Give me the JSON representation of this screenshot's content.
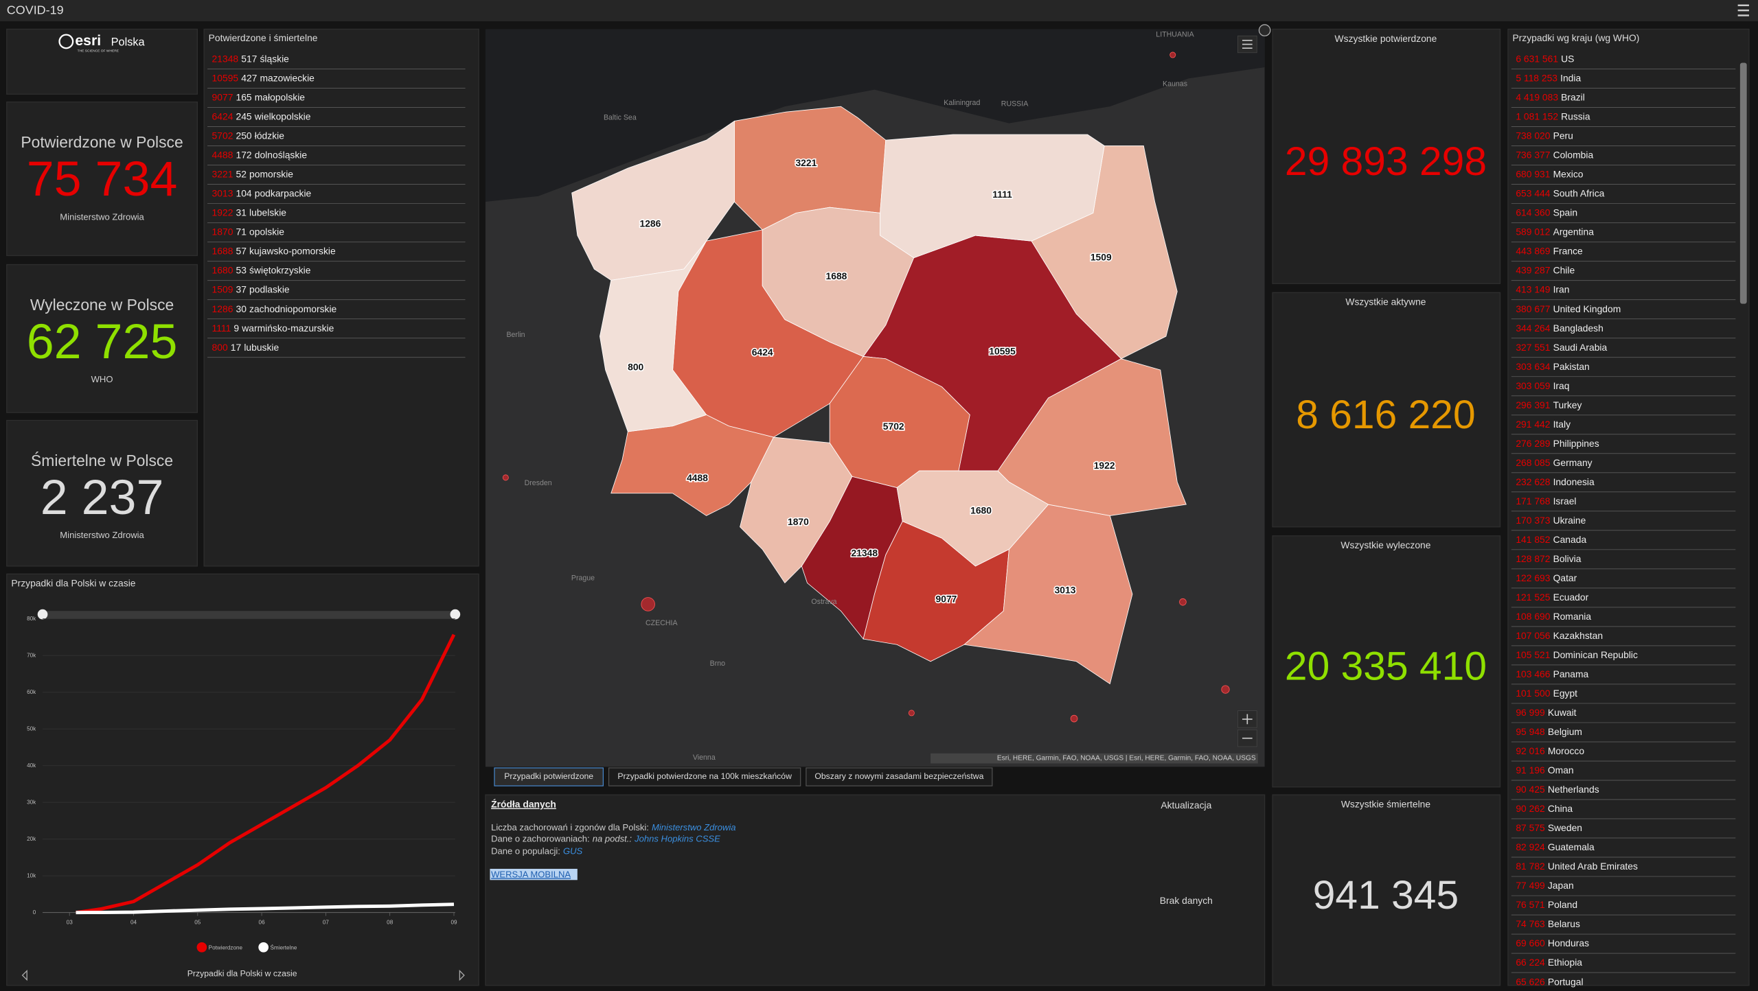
{
  "header": {
    "title": "COVID-19"
  },
  "logo": {
    "brand": "esri",
    "sub": "Polska",
    "tagline": "THE SCIENCE OF WHERE"
  },
  "poland_kpis": [
    {
      "title": "Potwierdzone w Polsce",
      "value": {
        "value": 75734,
        "label": "75 734"
      },
      "source": "Ministerstwo Zdrowia",
      "color": "#e60000"
    },
    {
      "title": "Wyleczone w Polsce",
      "value": {
        "value": 62725,
        "label": "62 725"
      },
      "source": "WHO",
      "color": "#8fe000"
    },
    {
      "title": "Śmiertelne w Polsce",
      "value": {
        "value": 2237,
        "label": "2 237"
      },
      "source": "Ministerstwo Zdrowia",
      "color": "#dddddd"
    }
  ],
  "regions": {
    "title": "Potwierdzone i śmiertelne",
    "cases_color": "#e60000",
    "rows": [
      {
        "cases": 21348,
        "deaths": 517,
        "name": "śląskie",
        "color": "#961822"
      },
      {
        "cases": 10595,
        "deaths": 427,
        "name": "mazowieckie",
        "color": "#a11d27"
      },
      {
        "cases": 9077,
        "deaths": 165,
        "name": "małopolskie",
        "color": "#c53a2f"
      },
      {
        "cases": 6424,
        "deaths": 245,
        "name": "wielkopolskie",
        "color": "#d9604a"
      },
      {
        "cases": 5702,
        "deaths": 250,
        "name": "łódzkie",
        "color": "#dc6a50"
      },
      {
        "cases": 4488,
        "deaths": 172,
        "name": "dolnośląskie",
        "color": "#e0775c"
      },
      {
        "cases": 3221,
        "deaths": 52,
        "name": "pomorskie",
        "color": "#e08468"
      },
      {
        "cases": 3013,
        "deaths": 104,
        "name": "podkarpackie",
        "color": "#e5907a"
      },
      {
        "cases": 1922,
        "deaths": 31,
        "name": "lubelskie",
        "color": "#e59279"
      },
      {
        "cases": 1870,
        "deaths": 71,
        "name": "opolskie",
        "color": "#ebbcab"
      },
      {
        "cases": 1688,
        "deaths": 57,
        "name": "kujawsko-pomorskie",
        "color": "#eac0b1"
      },
      {
        "cases": 1680,
        "deaths": 53,
        "name": "świętokrzyskie",
        "color": "#eec8b9"
      },
      {
        "cases": 1509,
        "deaths": 37,
        "name": "podlaskie",
        "color": "#ebbba8"
      },
      {
        "cases": 1286,
        "deaths": 30,
        "name": "zachodniopomorskie",
        "color": "#f0d8cf"
      },
      {
        "cases": 1111,
        "deaths": 9,
        "name": "warmińsko-mazurskie",
        "color": "#f0dcd4"
      },
      {
        "cases": 800,
        "deaths": 17,
        "name": "lubuskie",
        "color": "#f2e0d8"
      }
    ]
  },
  "map": {
    "places": [
      "LITHUANIA",
      "Kaunas",
      "Kaliningrad",
      "RUSSIA",
      "Baltic Sea",
      "Berlin",
      "Dresden",
      "Prague",
      "CZECHIA",
      "Brno",
      "Ostrava",
      "Vienna"
    ],
    "attribution": "Esri, HERE, Garmin, FAO, NOAA, USGS | Esri, HERE, Garmin, FAO, NOAA, USGS",
    "tabs": [
      "Przypadki potwierdzone",
      "Przypadki potwierdzone na 100k mieszkańców",
      "Obszary z nowymi zasadami bezpieczeństwa"
    ]
  },
  "sources": {
    "title": "Źródła danych",
    "line1": "Liczba zachorowań i zgonów dla Polski:",
    "link1": "Ministerstwo Zdrowia",
    "line2": "Dane o zachorowaniach:",
    "line2b": "na podst.:",
    "link2": "Johns Hopkins CSSE",
    "line3": "Dane o populacji:",
    "link3": "GUS",
    "mobile": "WERSJA MOBILNA",
    "update_title": "Aktualizacja",
    "update_value": "Brak danych"
  },
  "global_kpis": [
    {
      "title": "Wszystkie potwierdzone",
      "value": {
        "value": 29893298,
        "label": "29 893 298"
      },
      "color": "#e60000"
    },
    {
      "title": "Wszystkie aktywne",
      "value": {
        "value": 8616220,
        "label": "8 616 220"
      },
      "color": "#e69800"
    },
    {
      "title": "Wszystkie wyleczone",
      "value": {
        "value": 20335410,
        "label": "20 335 410"
      },
      "color": "#8fe000"
    },
    {
      "title": "Wszystkie śmiertelne",
      "value": {
        "value": 941345,
        "label": "941 345"
      },
      "color": "#dddddd"
    }
  ],
  "countries": {
    "title": "Przypadki wg kraju (wg WHO)",
    "cases_color": "#e60000",
    "rows": [
      {
        "cases": {
          "value": 6631561,
          "label": "6 631 561"
        },
        "name": "US"
      },
      {
        "cases": {
          "value": 5118253,
          "label": "5 118 253"
        },
        "name": "India"
      },
      {
        "cases": {
          "value": 4419083,
          "label": "4 419 083"
        },
        "name": "Brazil"
      },
      {
        "cases": {
          "value": 1081152,
          "label": "1 081 152"
        },
        "name": "Russia"
      },
      {
        "cases": {
          "value": 738020,
          "label": "738 020"
        },
        "name": "Peru"
      },
      {
        "cases": {
          "value": 736377,
          "label": "736 377"
        },
        "name": "Colombia"
      },
      {
        "cases": {
          "value": 680931,
          "label": "680 931"
        },
        "name": "Mexico"
      },
      {
        "cases": {
          "value": 653444,
          "label": "653 444"
        },
        "name": "South Africa"
      },
      {
        "cases": {
          "value": 614360,
          "label": "614 360"
        },
        "name": "Spain"
      },
      {
        "cases": {
          "value": 589012,
          "label": "589 012"
        },
        "name": "Argentina"
      },
      {
        "cases": {
          "value": 443869,
          "label": "443 869"
        },
        "name": "France"
      },
      {
        "cases": {
          "value": 439287,
          "label": "439 287"
        },
        "name": "Chile"
      },
      {
        "cases": {
          "value": 413149,
          "label": "413 149"
        },
        "name": "Iran"
      },
      {
        "cases": {
          "value": 380677,
          "label": "380 677"
        },
        "name": "United Kingdom"
      },
      {
        "cases": {
          "value": 344264,
          "label": "344 264"
        },
        "name": "Bangladesh"
      },
      {
        "cases": {
          "value": 327551,
          "label": "327 551"
        },
        "name": "Saudi Arabia"
      },
      {
        "cases": {
          "value": 303634,
          "label": "303 634"
        },
        "name": "Pakistan"
      },
      {
        "cases": {
          "value": 303059,
          "label": "303 059"
        },
        "name": "Iraq"
      },
      {
        "cases": {
          "value": 296391,
          "label": "296 391"
        },
        "name": "Turkey"
      },
      {
        "cases": {
          "value": 291442,
          "label": "291 442"
        },
        "name": "Italy"
      },
      {
        "cases": {
          "value": 276289,
          "label": "276 289"
        },
        "name": "Philippines"
      },
      {
        "cases": {
          "value": 268085,
          "label": "268 085"
        },
        "name": "Germany"
      },
      {
        "cases": {
          "value": 232628,
          "label": "232 628"
        },
        "name": "Indonesia"
      },
      {
        "cases": {
          "value": 171768,
          "label": "171 768"
        },
        "name": "Israel"
      },
      {
        "cases": {
          "value": 170373,
          "label": "170 373"
        },
        "name": "Ukraine"
      },
      {
        "cases": {
          "value": 141852,
          "label": "141 852"
        },
        "name": "Canada"
      },
      {
        "cases": {
          "value": 128872,
          "label": "128 872"
        },
        "name": "Bolivia"
      },
      {
        "cases": {
          "value": 122693,
          "label": "122 693"
        },
        "name": "Qatar"
      },
      {
        "cases": {
          "value": 121525,
          "label": "121 525"
        },
        "name": "Ecuador"
      },
      {
        "cases": {
          "value": 108690,
          "label": "108 690"
        },
        "name": "Romania"
      },
      {
        "cases": {
          "value": 107056,
          "label": "107 056"
        },
        "name": "Kazakhstan"
      },
      {
        "cases": {
          "value": 105521,
          "label": "105 521"
        },
        "name": "Dominican Republic"
      },
      {
        "cases": {
          "value": 103466,
          "label": "103 466"
        },
        "name": "Panama"
      },
      {
        "cases": {
          "value": 101500,
          "label": "101 500"
        },
        "name": "Egypt"
      },
      {
        "cases": {
          "value": 96999,
          "label": "96 999"
        },
        "name": "Kuwait"
      },
      {
        "cases": {
          "value": 95948,
          "label": "95 948"
        },
        "name": "Belgium"
      },
      {
        "cases": {
          "value": 92016,
          "label": "92 016"
        },
        "name": "Morocco"
      },
      {
        "cases": {
          "value": 91196,
          "label": "91 196"
        },
        "name": "Oman"
      },
      {
        "cases": {
          "value": 90425,
          "label": "90 425"
        },
        "name": "Netherlands"
      },
      {
        "cases": {
          "value": 90262,
          "label": "90 262"
        },
        "name": "China"
      },
      {
        "cases": {
          "value": 87575,
          "label": "87 575"
        },
        "name": "Sweden"
      },
      {
        "cases": {
          "value": 82924,
          "label": "82 924"
        },
        "name": "Guatemala"
      },
      {
        "cases": {
          "value": 81782,
          "label": "81 782"
        },
        "name": "United Arab Emirates"
      },
      {
        "cases": {
          "value": 77499,
          "label": "77 499"
        },
        "name": "Japan"
      },
      {
        "cases": {
          "value": 76571,
          "label": "76 571"
        },
        "name": "Poland"
      },
      {
        "cases": {
          "value": 74763,
          "label": "74 763"
        },
        "name": "Belarus"
      },
      {
        "cases": {
          "value": 69660,
          "label": "69 660"
        },
        "name": "Honduras"
      },
      {
        "cases": {
          "value": 66224,
          "label": "66 224"
        },
        "name": "Ethiopia"
      },
      {
        "cases": {
          "value": 65626,
          "label": "65 626"
        },
        "name": "Portugal"
      }
    ]
  },
  "chart_data": {
    "type": "line",
    "title": "Przypadki dla Polski w czasie",
    "x": [
      3.1,
      3.5,
      4,
      4.5,
      5,
      5.5,
      6,
      6.5,
      7,
      7.5,
      8,
      8.5,
      9
    ],
    "series": [
      {
        "name": "Potwierdzone",
        "color": "#e60000",
        "values": [
          0,
          1000,
          3000,
          8000,
          13000,
          19000,
          24000,
          29000,
          34000,
          40000,
          47000,
          58000,
          75700
        ]
      },
      {
        "name": "Śmiertelne",
        "color": "#ffffff",
        "values": [
          0,
          20,
          100,
          400,
          650,
          900,
          1060,
          1250,
          1470,
          1650,
          1750,
          2020,
          2230
        ]
      }
    ],
    "xlim": [
      2.58,
      9.02
    ],
    "ylim": [
      0,
      80000
    ],
    "xticks": [
      {
        "value": 3,
        "label": "03"
      },
      {
        "value": 4,
        "label": "04"
      },
      {
        "value": 5,
        "label": "05"
      },
      {
        "value": 6,
        "label": "06"
      },
      {
        "value": 7,
        "label": "07"
      },
      {
        "value": 8,
        "label": "08"
      },
      {
        "value": 9,
        "label": "09"
      }
    ],
    "yticks": [
      0,
      {
        "value": 10000,
        "label": "10k"
      },
      {
        "value": 20000,
        "label": "20k"
      },
      {
        "value": 30000,
        "label": "30k"
      },
      {
        "value": 40000,
        "label": "40k"
      },
      {
        "value": 50000,
        "label": "50k"
      },
      {
        "value": 60000,
        "label": "60k"
      },
      {
        "value": 70000,
        "label": "70k"
      },
      {
        "value": 80000,
        "label": "80k"
      }
    ],
    "grid": true
  }
}
